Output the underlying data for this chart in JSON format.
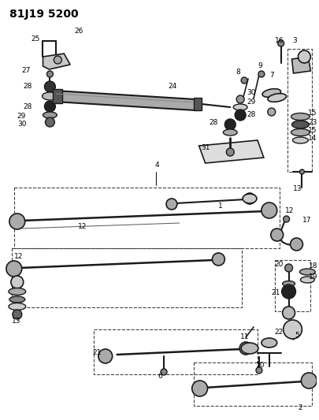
{
  "bg_color": "#ffffff",
  "lc": "#1a1a1a",
  "dc": "#444444",
  "figsize": [
    4.06,
    5.33
  ],
  "dpi": 100,
  "title": "81J19 5200"
}
